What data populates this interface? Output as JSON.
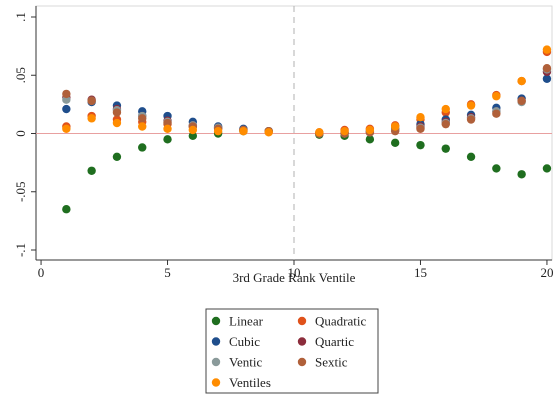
{
  "chart_data": {
    "type": "scatter",
    "title": "",
    "xlabel": "3rd Grade Rank Ventile",
    "ylabel": "",
    "xlim": [
      0,
      20
    ],
    "ylim": [
      -0.1,
      0.1
    ],
    "x_ticks": [
      {
        "value": 0,
        "label": "0"
      },
      {
        "value": 5,
        "label": "5"
      },
      {
        "value": 10,
        "label": "10"
      },
      {
        "value": 15,
        "label": "15"
      },
      {
        "value": 20,
        "label": "20"
      }
    ],
    "y_ticks": [
      {
        "value": 0.1,
        "label": ".1"
      },
      {
        "value": 0.05,
        "label": ".05"
      },
      {
        "value": 0,
        "label": "0"
      },
      {
        "value": -0.05,
        "label": "-.05"
      },
      {
        "value": -0.1,
        "label": "-.1"
      }
    ],
    "reference_lines": {
      "horizontal_y": 0,
      "horizontal_color": "#e8a0a0",
      "vertical_x": 10,
      "vertical_color": "#b0b0b0"
    },
    "grid": false,
    "legend_position": "bottom",
    "series": [
      {
        "name": "Linear",
        "color": "#1f6e1f",
        "x": [
          1,
          2,
          3,
          4,
          5,
          6,
          7,
          8,
          9,
          11,
          12,
          13,
          14,
          15,
          16,
          17,
          18,
          19,
          20
        ],
        "y": [
          -0.065,
          -0.032,
          -0.02,
          -0.012,
          -0.005,
          -0.002,
          0.0,
          0.002,
          0.002,
          -0.001,
          -0.002,
          -0.005,
          -0.008,
          -0.01,
          -0.013,
          -0.02,
          -0.03,
          -0.035,
          -0.03
        ]
      },
      {
        "name": "Quadratic",
        "color": "#e0521b",
        "x": [
          1,
          2,
          3,
          4,
          5,
          6,
          7,
          8,
          9,
          11,
          12,
          13,
          14,
          15,
          16,
          17,
          18,
          19,
          20
        ],
        "y": [
          0.006,
          0.015,
          0.012,
          0.01,
          0.008,
          0.006,
          0.004,
          0.003,
          0.002,
          0.001,
          0.003,
          0.004,
          0.007,
          0.012,
          0.018,
          0.025,
          0.033,
          0.045,
          0.07
        ]
      },
      {
        "name": "Cubic",
        "color": "#1f4e8c",
        "x": [
          1,
          2,
          3,
          4,
          5,
          6,
          7,
          8,
          9,
          11,
          12,
          13,
          14,
          15,
          16,
          17,
          18,
          19,
          20
        ],
        "y": [
          0.021,
          0.027,
          0.024,
          0.019,
          0.015,
          0.01,
          0.006,
          0.004,
          0.002,
          0.0,
          0.001,
          0.002,
          0.004,
          0.008,
          0.012,
          0.016,
          0.022,
          0.03,
          0.047
        ]
      },
      {
        "name": "Quartic",
        "color": "#8c2d3c",
        "x": [
          1,
          2,
          3,
          4,
          5,
          6,
          7,
          8,
          9,
          11,
          12,
          13,
          14,
          15,
          16,
          17,
          18,
          19,
          20
        ],
        "y": [
          0.031,
          0.029,
          0.021,
          0.015,
          0.011,
          0.007,
          0.005,
          0.003,
          0.002,
          0.0,
          0.0,
          0.001,
          0.003,
          0.006,
          0.01,
          0.014,
          0.019,
          0.028,
          0.053
        ]
      },
      {
        "name": "Ventic",
        "color": "#8a9a9a",
        "x": [
          1,
          2,
          3,
          4,
          5,
          6,
          7,
          8,
          9,
          11,
          12,
          13,
          14,
          15,
          16,
          17,
          18,
          19,
          20
        ],
        "y": [
          0.029,
          0.028,
          0.02,
          0.015,
          0.01,
          0.007,
          0.005,
          0.003,
          0.002,
          0.0,
          0.0,
          0.001,
          0.003,
          0.005,
          0.009,
          0.013,
          0.019,
          0.027,
          0.055
        ]
      },
      {
        "name": "Sextic",
        "color": "#b0603a",
        "x": [
          1,
          2,
          3,
          4,
          5,
          6,
          7,
          8,
          9,
          11,
          12,
          13,
          14,
          15,
          16,
          17,
          18,
          19,
          20
        ],
        "y": [
          0.034,
          0.028,
          0.018,
          0.013,
          0.009,
          0.006,
          0.004,
          0.003,
          0.002,
          0.0,
          0.0,
          0.001,
          0.002,
          0.004,
          0.008,
          0.012,
          0.017,
          0.028,
          0.056
        ]
      },
      {
        "name": "Ventiles",
        "color": "#ff8c00",
        "x": [
          1,
          2,
          3,
          4,
          5,
          6,
          7,
          8,
          9,
          11,
          12,
          13,
          14,
          15,
          16,
          17,
          18,
          19,
          20
        ],
        "y": [
          0.004,
          0.013,
          0.009,
          0.006,
          0.004,
          0.003,
          0.002,
          0.002,
          0.001,
          0.001,
          0.002,
          0.003,
          0.006,
          0.014,
          0.021,
          0.024,
          0.032,
          0.045,
          0.072
        ]
      }
    ],
    "legend_order": [
      "Linear",
      "Quadratic",
      "Cubic",
      "Quartic",
      "Ventic",
      "Sextic",
      "Ventiles"
    ]
  }
}
